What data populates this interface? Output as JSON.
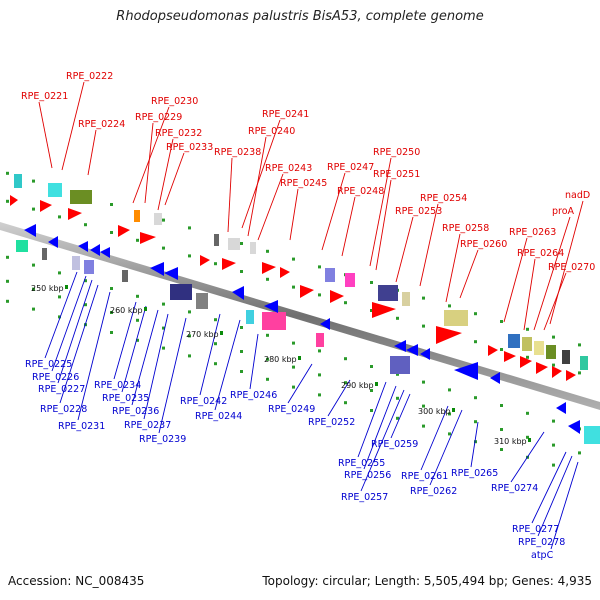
{
  "title": "Rhodopseudomonas palustris BisA53, complete genome",
  "footer": {
    "accession": "Accession: NC_008435",
    "topology": "Topology: circular; Length: 5,505,494 bp; Genes: 4,935"
  },
  "ticks": [
    "250 kbp",
    "260 kbp",
    "270 kbp",
    "280 kbp",
    "290 kbp",
    "300 kbp",
    "310 kbp"
  ],
  "top_labels": [
    "RPE_0222",
    "RPE_0221",
    "RPE_0224",
    "RPE_0230",
    "RPE_0229",
    "RPE_0232",
    "RPE_0233",
    "RPE_0238",
    "RPE_0241",
    "RPE_0240",
    "RPE_0243",
    "RPE_0245",
    "RPE_0247",
    "RPE_0248",
    "RPE_0250",
    "RPE_0251",
    "RPE_0253",
    "RPE_0254",
    "RPE_0258",
    "RPE_0260",
    "RPE_0263",
    "RPE_0264",
    "RPE_0270",
    "nadD",
    "proA"
  ],
  "bottom_labels": [
    "RPE_0225",
    "RPE_0226",
    "RPE_0227",
    "RPE_0228",
    "RPE_0231",
    "RPE_0234",
    "RPE_0235",
    "RPE_0236",
    "RPE_0237",
    "RPE_0239",
    "RPE_0242",
    "RPE_0244",
    "RPE_0246",
    "RPE_0249",
    "RPE_0252",
    "RPE_0255",
    "RPE_0256",
    "RPE_0257",
    "RPE_0259",
    "RPE_0261",
    "RPE_0262",
    "RPE_0265",
    "RPE_0274",
    "RPE_0277",
    "RPE_0278",
    "atpC"
  ],
  "colors": {
    "forward_genes": "#ff0000",
    "reverse_genes": "#0000ff",
    "top_labels": "#e00000",
    "bottom_labels": "#0000d0",
    "backbone": "#888888"
  }
}
